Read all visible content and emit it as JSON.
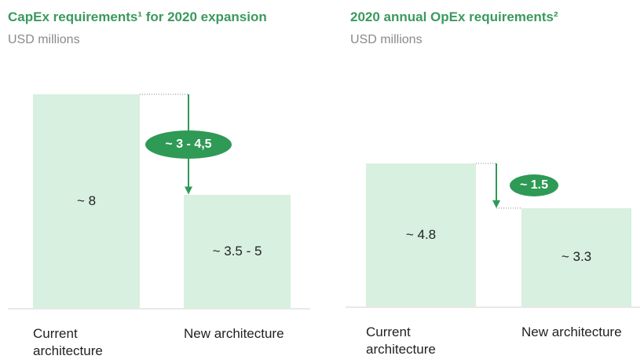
{
  "chart_data": [
    {
      "type": "bar",
      "title": "CapEx requirements¹ for 2020 expansion",
      "subtitle": "USD millions",
      "categories": [
        "Current architecture",
        "New architecture"
      ],
      "values": [
        8,
        4.25
      ],
      "value_labels": [
        "~ 8",
        "~ 3.5 - 5"
      ],
      "annotation": "~ 3 - 4,5",
      "color": "#d8f0df",
      "accent": "#2e9a55"
    },
    {
      "type": "bar",
      "title": "2020 annual OpEx requirements²",
      "subtitle": "USD millions",
      "categories": [
        "Current architecture",
        "New architecture"
      ],
      "values": [
        4.8,
        3.3
      ],
      "value_labels": [
        "~ 4.8",
        "~ 3.3"
      ],
      "annotation": "~ 1.5",
      "color": "#d8f0df",
      "accent": "#2e9a55"
    }
  ]
}
